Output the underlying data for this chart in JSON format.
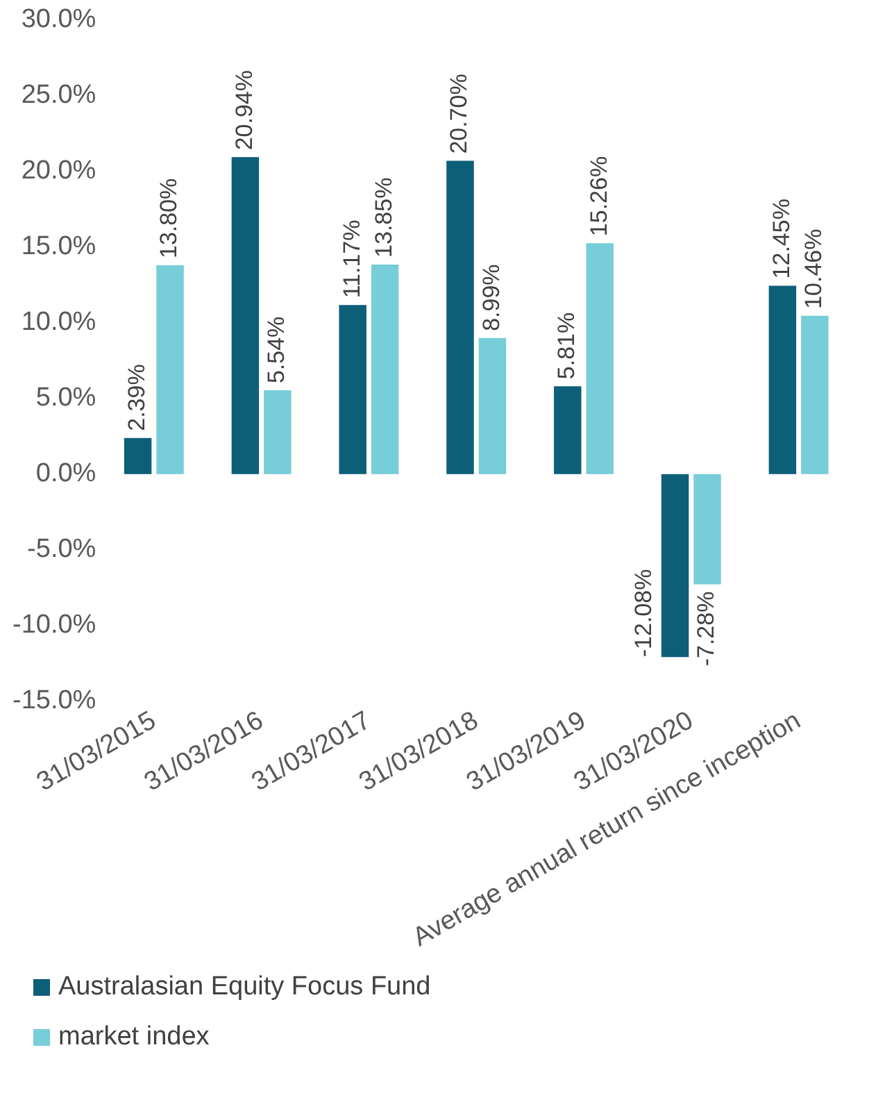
{
  "chart_data": {
    "type": "bar",
    "categories": [
      "31/03/2015",
      "31/03/2016",
      "31/03/2017",
      "31/03/2018",
      "31/03/2019",
      "31/03/2020",
      "Average annual return since inception"
    ],
    "series": [
      {
        "name": "Australasian Equity Focus Fund",
        "color": "#0d5f78",
        "values": [
          2.39,
          20.94,
          11.17,
          20.7,
          5.81,
          -12.08,
          12.45
        ],
        "value_labels": [
          "2.39%",
          "20.94%",
          "11.17%",
          "20.70%",
          "5.81%",
          "-12.08%",
          "12.45%"
        ]
      },
      {
        "name": "market index",
        "color": "#77cdd8",
        "values": [
          13.8,
          5.54,
          13.85,
          8.99,
          15.26,
          -7.28,
          10.46
        ],
        "value_labels": [
          "13.80%",
          "5.54%",
          "13.85%",
          "8.99%",
          "15.26%",
          "-7.28%",
          "10.46%"
        ]
      }
    ],
    "ylim": [
      -15,
      30
    ],
    "yticks": [
      {
        "value": -15,
        "label": "-15.0%"
      },
      {
        "value": -10,
        "label": "-10.0%"
      },
      {
        "value": -5,
        "label": "-5.0%"
      },
      {
        "value": 0,
        "label": "0.0%"
      },
      {
        "value": 5,
        "label": "5.0%"
      },
      {
        "value": 10,
        "label": "10.0%"
      },
      {
        "value": 15,
        "label": "15.0%"
      },
      {
        "value": 20,
        "label": "20.0%"
      },
      {
        "value": 25,
        "label": "25.0%"
      },
      {
        "value": 30,
        "label": "30.0%"
      }
    ],
    "grid": false,
    "legend": "bottom left"
  }
}
